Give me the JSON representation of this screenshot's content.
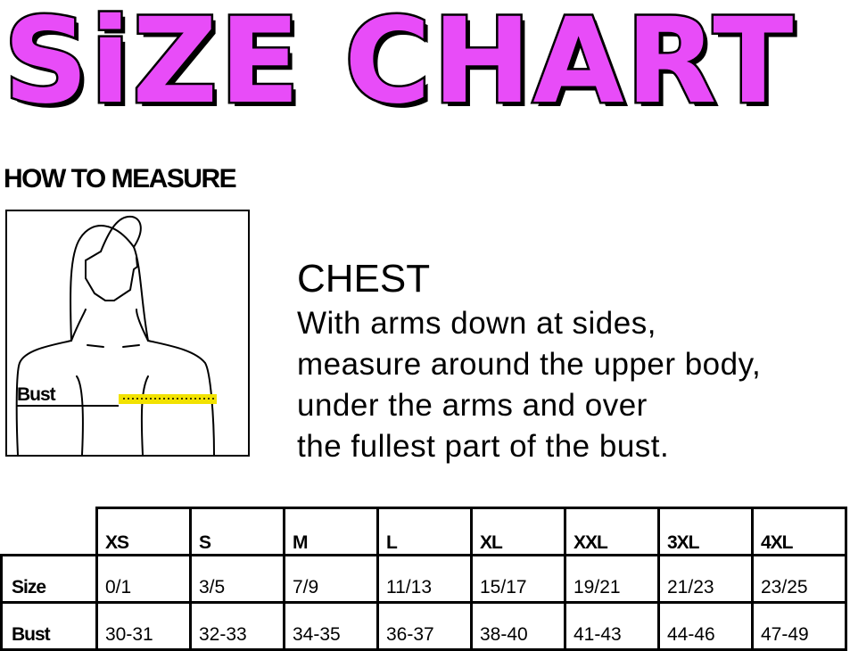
{
  "title": "SiZE CHART",
  "title_color": "#e84cf8",
  "how_to_measure": "HOW TO MEASURE",
  "figure": {
    "bust_label": "Bust",
    "tape_color": "#f2e200"
  },
  "chest": {
    "heading": "CHEST",
    "lines": [
      "With arms down at sides,",
      "measure around the upper body,",
      "under the arms and over",
      "the fullest part of the bust."
    ]
  },
  "table": {
    "headers": [
      "XS",
      "S",
      "M",
      "L",
      "XL",
      "XXL",
      "3XL",
      "4XL"
    ],
    "rows": [
      {
        "label": "Size",
        "values": [
          "0/1",
          "3/5",
          "7/9",
          "11/13",
          "15/17",
          "19/21",
          "21/23",
          "23/25"
        ]
      },
      {
        "label": "Bust",
        "values": [
          "30-31",
          "32-33",
          "34-35",
          "36-37",
          "38-40",
          "41-43",
          "44-46",
          "47-49"
        ]
      }
    ]
  }
}
